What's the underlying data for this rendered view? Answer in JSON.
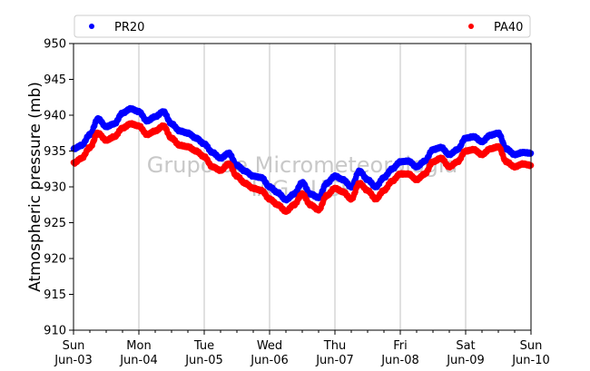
{
  "chart_data": {
    "type": "scatter",
    "ylabel": "Atmospheric pressure (mb)",
    "xlabel": "",
    "ylim": [
      910,
      950
    ],
    "yticks": [
      910,
      915,
      920,
      925,
      930,
      935,
      940,
      945,
      950
    ],
    "xlim": [
      "2018-06-03",
      "2018-06-10"
    ],
    "xticks": [
      {
        "day": "Sun",
        "date": "Jun-03"
      },
      {
        "day": "Mon",
        "date": "Jun-04"
      },
      {
        "day": "Tue",
        "date": "Jun-05"
      },
      {
        "day": "Wed",
        "date": "Jun-06"
      },
      {
        "day": "Thu",
        "date": "Jun-07"
      },
      {
        "day": "Fri",
        "date": "Jun-08"
      },
      {
        "day": "Sat",
        "date": "Jun-09"
      },
      {
        "day": "Sun",
        "date": "Jun-10"
      }
    ],
    "grid": "vertical",
    "legend_position": "top, above plot",
    "watermark": [
      "Grupo de Micrometeorologia",
      "IAG - USP"
    ],
    "series": [
      {
        "name": "PR20",
        "color": "#0000ff",
        "points": [
          [
            "2018-06-03 00:00",
            935.3
          ],
          [
            "2018-06-03 03:00",
            935.8
          ],
          [
            "2018-06-03 06:00",
            937.3
          ],
          [
            "2018-06-03 09:00",
            939.5
          ],
          [
            "2018-06-03 12:00",
            938.4
          ],
          [
            "2018-06-03 15:00",
            938.8
          ],
          [
            "2018-06-03 18:00",
            940.3
          ],
          [
            "2018-06-03 21:00",
            940.9
          ],
          [
            "2018-06-04 00:00",
            940.5
          ],
          [
            "2018-06-04 03:00",
            939.2
          ],
          [
            "2018-06-04 06:00",
            939.8
          ],
          [
            "2018-06-04 09:00",
            940.5
          ],
          [
            "2018-06-04 12:00",
            938.8
          ],
          [
            "2018-06-04 15:00",
            937.8
          ],
          [
            "2018-06-04 18:00",
            937.5
          ],
          [
            "2018-06-04 21:00",
            936.8
          ],
          [
            "2018-06-05 00:00",
            936.0
          ],
          [
            "2018-06-05 03:00",
            934.8
          ],
          [
            "2018-06-05 06:00",
            934.0
          ],
          [
            "2018-06-05 09:00",
            934.7
          ],
          [
            "2018-06-05 12:00",
            933.0
          ],
          [
            "2018-06-05 15:00",
            932.2
          ],
          [
            "2018-06-05 18:00",
            931.5
          ],
          [
            "2018-06-05 21:00",
            931.3
          ],
          [
            "2018-06-06 00:00",
            930.0
          ],
          [
            "2018-06-06 03:00",
            929.2
          ],
          [
            "2018-06-06 06:00",
            928.2
          ],
          [
            "2018-06-06 09:00",
            929.0
          ],
          [
            "2018-06-06 12:00",
            930.6
          ],
          [
            "2018-06-06 15:00",
            929.0
          ],
          [
            "2018-06-06 18:00",
            928.5
          ],
          [
            "2018-06-06 21:00",
            930.5
          ],
          [
            "2018-06-07 00:00",
            931.5
          ],
          [
            "2018-06-07 03:00",
            931.0
          ],
          [
            "2018-06-07 06:00",
            930.0
          ],
          [
            "2018-06-07 09:00",
            932.2
          ],
          [
            "2018-06-07 12:00",
            931.0
          ],
          [
            "2018-06-07 15:00",
            930.0
          ],
          [
            "2018-06-07 18:00",
            931.3
          ],
          [
            "2018-06-07 21:00",
            932.5
          ],
          [
            "2018-06-08 00:00",
            933.5
          ],
          [
            "2018-06-08 03:00",
            933.6
          ],
          [
            "2018-06-08 06:00",
            932.8
          ],
          [
            "2018-06-08 09:00",
            933.6
          ],
          [
            "2018-06-08 12:00",
            935.2
          ],
          [
            "2018-06-08 15:00",
            935.5
          ],
          [
            "2018-06-08 18:00",
            934.5
          ],
          [
            "2018-06-08 21:00",
            935.2
          ],
          [
            "2018-06-09 00:00",
            936.8
          ],
          [
            "2018-06-09 03:00",
            937.0
          ],
          [
            "2018-06-09 06:00",
            936.3
          ],
          [
            "2018-06-09 09:00",
            937.2
          ],
          [
            "2018-06-09 12:00",
            937.5
          ],
          [
            "2018-06-09 15:00",
            935.3
          ],
          [
            "2018-06-09 18:00",
            934.5
          ],
          [
            "2018-06-09 21:00",
            934.8
          ],
          [
            "2018-06-10 00:00",
            934.7
          ]
        ]
      },
      {
        "name": "PA40",
        "color": "#ff0000",
        "points": [
          [
            "2018-06-03 00:00",
            933.3
          ],
          [
            "2018-06-03 03:00",
            934.0
          ],
          [
            "2018-06-03 06:00",
            935.5
          ],
          [
            "2018-06-03 09:00",
            937.5
          ],
          [
            "2018-06-03 12:00",
            936.5
          ],
          [
            "2018-06-03 15:00",
            937.0
          ],
          [
            "2018-06-03 18:00",
            938.2
          ],
          [
            "2018-06-03 21:00",
            938.8
          ],
          [
            "2018-06-04 00:00",
            938.5
          ],
          [
            "2018-06-04 03:00",
            937.3
          ],
          [
            "2018-06-04 06:00",
            937.8
          ],
          [
            "2018-06-04 09:00",
            938.5
          ],
          [
            "2018-06-04 12:00",
            936.8
          ],
          [
            "2018-06-04 15:00",
            935.8
          ],
          [
            "2018-06-04 18:00",
            935.6
          ],
          [
            "2018-06-04 21:00",
            935.0
          ],
          [
            "2018-06-05 00:00",
            934.2
          ],
          [
            "2018-06-05 03:00",
            932.8
          ],
          [
            "2018-06-05 06:00",
            932.3
          ],
          [
            "2018-06-05 09:00",
            933.2
          ],
          [
            "2018-06-05 12:00",
            931.5
          ],
          [
            "2018-06-05 15:00",
            930.5
          ],
          [
            "2018-06-05 18:00",
            929.8
          ],
          [
            "2018-06-05 21:00",
            929.5
          ],
          [
            "2018-06-06 00:00",
            928.3
          ],
          [
            "2018-06-06 03:00",
            927.5
          ],
          [
            "2018-06-06 06:00",
            926.6
          ],
          [
            "2018-06-06 09:00",
            927.5
          ],
          [
            "2018-06-06 12:00",
            929.0
          ],
          [
            "2018-06-06 15:00",
            927.5
          ],
          [
            "2018-06-06 18:00",
            926.8
          ],
          [
            "2018-06-06 21:00",
            928.8
          ],
          [
            "2018-06-07 00:00",
            929.8
          ],
          [
            "2018-06-07 03:00",
            929.3
          ],
          [
            "2018-06-07 06:00",
            928.3
          ],
          [
            "2018-06-07 09:00",
            930.5
          ],
          [
            "2018-06-07 12:00",
            929.5
          ],
          [
            "2018-06-07 15:00",
            928.3
          ],
          [
            "2018-06-07 18:00",
            929.5
          ],
          [
            "2018-06-07 21:00",
            930.8
          ],
          [
            "2018-06-08 00:00",
            931.8
          ],
          [
            "2018-06-08 03:00",
            931.8
          ],
          [
            "2018-06-08 06:00",
            931.0
          ],
          [
            "2018-06-08 09:00",
            931.8
          ],
          [
            "2018-06-08 12:00",
            933.5
          ],
          [
            "2018-06-08 15:00",
            934.0
          ],
          [
            "2018-06-08 18:00",
            932.8
          ],
          [
            "2018-06-08 21:00",
            933.5
          ],
          [
            "2018-06-09 00:00",
            935.0
          ],
          [
            "2018-06-09 03:00",
            935.2
          ],
          [
            "2018-06-09 06:00",
            934.5
          ],
          [
            "2018-06-09 09:00",
            935.3
          ],
          [
            "2018-06-09 12:00",
            935.6
          ],
          [
            "2018-06-09 15:00",
            933.5
          ],
          [
            "2018-06-09 18:00",
            932.8
          ],
          [
            "2018-06-09 21:00",
            933.2
          ],
          [
            "2018-06-10 00:00",
            933.0
          ]
        ]
      }
    ]
  }
}
